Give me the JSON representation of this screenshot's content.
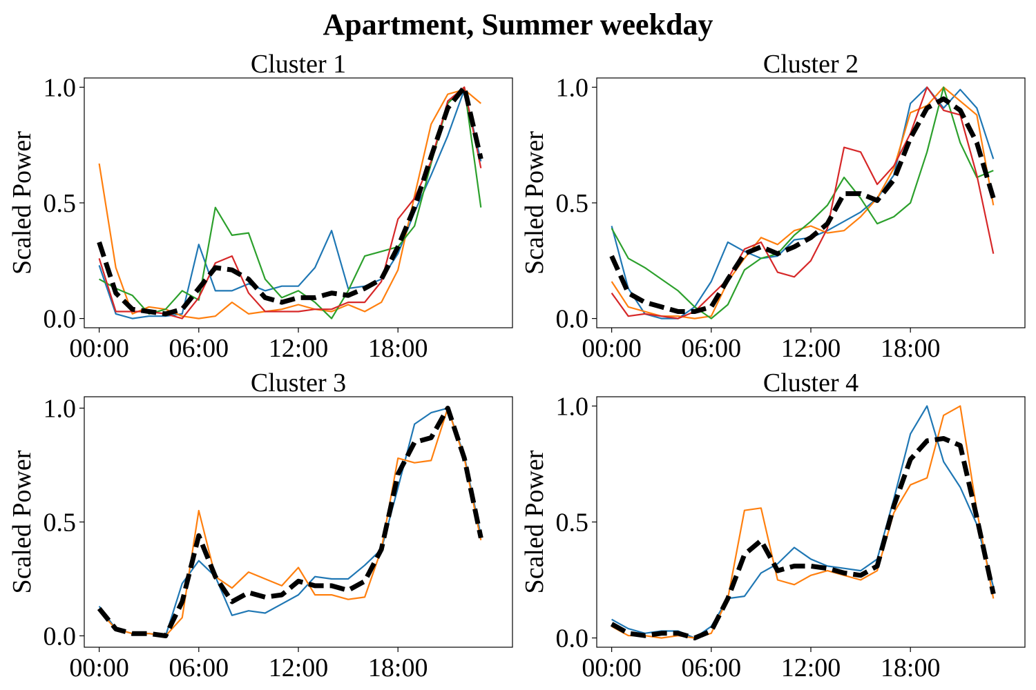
{
  "figure": {
    "title": "Apartment, Summer weekday"
  },
  "colors": {
    "series": [
      "#1f77b4",
      "#ff7f0e",
      "#2ca02c",
      "#d62728"
    ],
    "centroid": "#000000"
  },
  "chart_data": [
    {
      "type": "line",
      "title": "Cluster 1",
      "ylabel": "Scaled Power",
      "xlabel": "",
      "x": [
        "00:00",
        "01:00",
        "02:00",
        "03:00",
        "04:00",
        "05:00",
        "06:00",
        "07:00",
        "08:00",
        "09:00",
        "10:00",
        "11:00",
        "12:00",
        "13:00",
        "14:00",
        "15:00",
        "16:00",
        "17:00",
        "18:00",
        "19:00",
        "20:00",
        "21:00",
        "22:00",
        "23:00"
      ],
      "xticks": [
        "00:00",
        "06:00",
        "12:00",
        "18:00"
      ],
      "yticks": [
        "0.0",
        "0.5",
        "1.0"
      ],
      "ylim": [
        -0.04,
        1.04
      ],
      "grid": false,
      "series": [
        {
          "values": [
            0.23,
            0.02,
            0.0,
            0.01,
            0.01,
            0.02,
            0.32,
            0.12,
            0.12,
            0.15,
            0.12,
            0.14,
            0.14,
            0.22,
            0.38,
            0.13,
            0.14,
            0.17,
            0.28,
            0.46,
            0.62,
            0.79,
            0.99,
            0.68
          ]
        },
        {
          "values": [
            0.67,
            0.22,
            0.02,
            0.05,
            0.04,
            0.01,
            0.0,
            0.01,
            0.07,
            0.02,
            0.03,
            0.04,
            0.06,
            0.04,
            0.03,
            0.06,
            0.03,
            0.07,
            0.21,
            0.53,
            0.84,
            0.97,
            0.99,
            0.93
          ]
        },
        {
          "values": [
            0.17,
            0.13,
            0.1,
            0.02,
            0.04,
            0.12,
            0.08,
            0.48,
            0.36,
            0.37,
            0.17,
            0.09,
            0.12,
            0.07,
            0.0,
            0.12,
            0.27,
            0.29,
            0.31,
            0.4,
            0.67,
            0.93,
            1.0,
            0.48
          ]
        },
        {
          "values": [
            0.26,
            0.03,
            0.03,
            0.03,
            0.02,
            0.0,
            0.09,
            0.24,
            0.27,
            0.11,
            0.03,
            0.03,
            0.03,
            0.04,
            0.04,
            0.07,
            0.07,
            0.16,
            0.43,
            0.52,
            0.68,
            0.94,
            1.0,
            0.65
          ]
        }
      ],
      "centroid": {
        "values": [
          0.33,
          0.11,
          0.04,
          0.03,
          0.02,
          0.04,
          0.13,
          0.22,
          0.21,
          0.17,
          0.09,
          0.07,
          0.09,
          0.09,
          0.11,
          0.1,
          0.13,
          0.17,
          0.31,
          0.48,
          0.7,
          0.91,
          1.0,
          0.69
        ]
      }
    },
    {
      "type": "line",
      "title": "Cluster 2",
      "ylabel": "Scaled Power",
      "xlabel": "",
      "x": [
        "00:00",
        "01:00",
        "02:00",
        "03:00",
        "04:00",
        "05:00",
        "06:00",
        "07:00",
        "08:00",
        "09:00",
        "10:00",
        "11:00",
        "12:00",
        "13:00",
        "14:00",
        "15:00",
        "16:00",
        "17:00",
        "18:00",
        "19:00",
        "20:00",
        "21:00",
        "22:00",
        "23:00"
      ],
      "xticks": [
        "00:00",
        "06:00",
        "12:00",
        "18:00"
      ],
      "yticks": [
        "0.0",
        "0.5",
        "1.0"
      ],
      "ylim": [
        -0.04,
        1.04
      ],
      "grid": false,
      "series": [
        {
          "values": [
            0.4,
            0.13,
            0.02,
            0.0,
            0.0,
            0.05,
            0.16,
            0.33,
            0.29,
            0.26,
            0.27,
            0.34,
            0.35,
            0.38,
            0.42,
            0.46,
            0.52,
            0.62,
            0.93,
            1.0,
            0.91,
            0.99,
            0.91,
            0.69
          ]
        },
        {
          "values": [
            0.16,
            0.05,
            0.03,
            0.01,
            0.01,
            0.0,
            0.01,
            0.16,
            0.26,
            0.35,
            0.32,
            0.38,
            0.4,
            0.37,
            0.38,
            0.44,
            0.52,
            0.65,
            0.89,
            0.92,
            1.0,
            0.94,
            0.88,
            0.49
          ]
        },
        {
          "values": [
            0.39,
            0.26,
            0.22,
            0.17,
            0.12,
            0.05,
            0.0,
            0.06,
            0.21,
            0.26,
            0.28,
            0.36,
            0.42,
            0.49,
            0.61,
            0.52,
            0.41,
            0.44,
            0.5,
            0.72,
            1.0,
            0.76,
            0.61,
            0.64
          ]
        },
        {
          "values": [
            0.11,
            0.01,
            0.02,
            0.01,
            0.0,
            0.03,
            0.1,
            0.17,
            0.3,
            0.33,
            0.2,
            0.18,
            0.25,
            0.39,
            0.74,
            0.72,
            0.58,
            0.66,
            0.8,
            1.0,
            0.9,
            0.88,
            0.62,
            0.28
          ]
        }
      ],
      "centroid": {
        "values": [
          0.27,
          0.11,
          0.07,
          0.05,
          0.03,
          0.03,
          0.05,
          0.17,
          0.28,
          0.31,
          0.28,
          0.31,
          0.35,
          0.41,
          0.54,
          0.54,
          0.51,
          0.6,
          0.78,
          0.91,
          0.95,
          0.9,
          0.76,
          0.52
        ]
      }
    },
    {
      "type": "line",
      "title": "Cluster 3",
      "ylabel": "Scaled Power",
      "xlabel": "",
      "x": [
        "00:00",
        "01:00",
        "02:00",
        "03:00",
        "04:00",
        "05:00",
        "06:00",
        "07:00",
        "08:00",
        "09:00",
        "10:00",
        "11:00",
        "12:00",
        "13:00",
        "14:00",
        "15:00",
        "16:00",
        "17:00",
        "18:00",
        "19:00",
        "20:00",
        "21:00",
        "22:00",
        "23:00"
      ],
      "xticks": [
        "00:00",
        "06:00",
        "12:00",
        "18:00"
      ],
      "yticks": [
        "0.0",
        "0.5",
        "1.0"
      ],
      "ylim": [
        -0.05,
        1.05
      ],
      "grid": false,
      "series": [
        {
          "values": [
            0.13,
            0.03,
            0.01,
            0.01,
            0.0,
            0.23,
            0.33,
            0.26,
            0.09,
            0.11,
            0.1,
            0.14,
            0.18,
            0.26,
            0.25,
            0.25,
            0.31,
            0.38,
            0.65,
            0.93,
            0.98,
            1.0,
            0.79,
            0.44
          ]
        },
        {
          "values": [
            0.11,
            0.03,
            0.01,
            0.01,
            0.0,
            0.08,
            0.55,
            0.26,
            0.21,
            0.28,
            0.25,
            0.22,
            0.3,
            0.18,
            0.18,
            0.16,
            0.17,
            0.38,
            0.78,
            0.76,
            0.77,
            1.0,
            0.78,
            0.42
          ]
        }
      ],
      "centroid": {
        "values": [
          0.12,
          0.03,
          0.01,
          0.01,
          0.0,
          0.15,
          0.44,
          0.26,
          0.15,
          0.19,
          0.17,
          0.18,
          0.24,
          0.22,
          0.22,
          0.2,
          0.24,
          0.38,
          0.71,
          0.85,
          0.87,
          1.0,
          0.78,
          0.43
        ]
      }
    },
    {
      "type": "line",
      "title": "Cluster 4",
      "ylabel": "Scaled Power",
      "xlabel": "",
      "x": [
        "00:00",
        "01:00",
        "02:00",
        "03:00",
        "04:00",
        "05:00",
        "06:00",
        "07:00",
        "08:00",
        "09:00",
        "10:00",
        "11:00",
        "12:00",
        "13:00",
        "14:00",
        "15:00",
        "16:00",
        "17:00",
        "18:00",
        "19:00",
        "20:00",
        "21:00",
        "22:00",
        "23:00"
      ],
      "xticks": [
        "00:00",
        "06:00",
        "12:00",
        "18:00"
      ],
      "yticks": [
        "0.0",
        "0.5",
        "1.0"
      ],
      "ylim": [
        -0.04,
        1.04
      ],
      "grid": false,
      "series": [
        {
          "values": [
            0.08,
            0.04,
            0.02,
            0.03,
            0.03,
            0.0,
            0.05,
            0.17,
            0.18,
            0.28,
            0.32,
            0.39,
            0.34,
            0.31,
            0.3,
            0.29,
            0.34,
            0.6,
            0.88,
            1.0,
            0.76,
            0.65,
            0.49,
            0.22
          ]
        },
        {
          "values": [
            0.05,
            0.01,
            0.01,
            0.0,
            0.01,
            0.0,
            0.02,
            0.17,
            0.55,
            0.56,
            0.25,
            0.23,
            0.27,
            0.29,
            0.27,
            0.25,
            0.29,
            0.54,
            0.66,
            0.69,
            0.96,
            1.0,
            0.55,
            0.17
          ]
        }
      ],
      "centroid": {
        "values": [
          0.06,
          0.02,
          0.01,
          0.02,
          0.02,
          0.0,
          0.03,
          0.17,
          0.36,
          0.42,
          0.29,
          0.31,
          0.31,
          0.3,
          0.28,
          0.27,
          0.31,
          0.57,
          0.77,
          0.85,
          0.86,
          0.83,
          0.52,
          0.19
        ]
      }
    }
  ]
}
